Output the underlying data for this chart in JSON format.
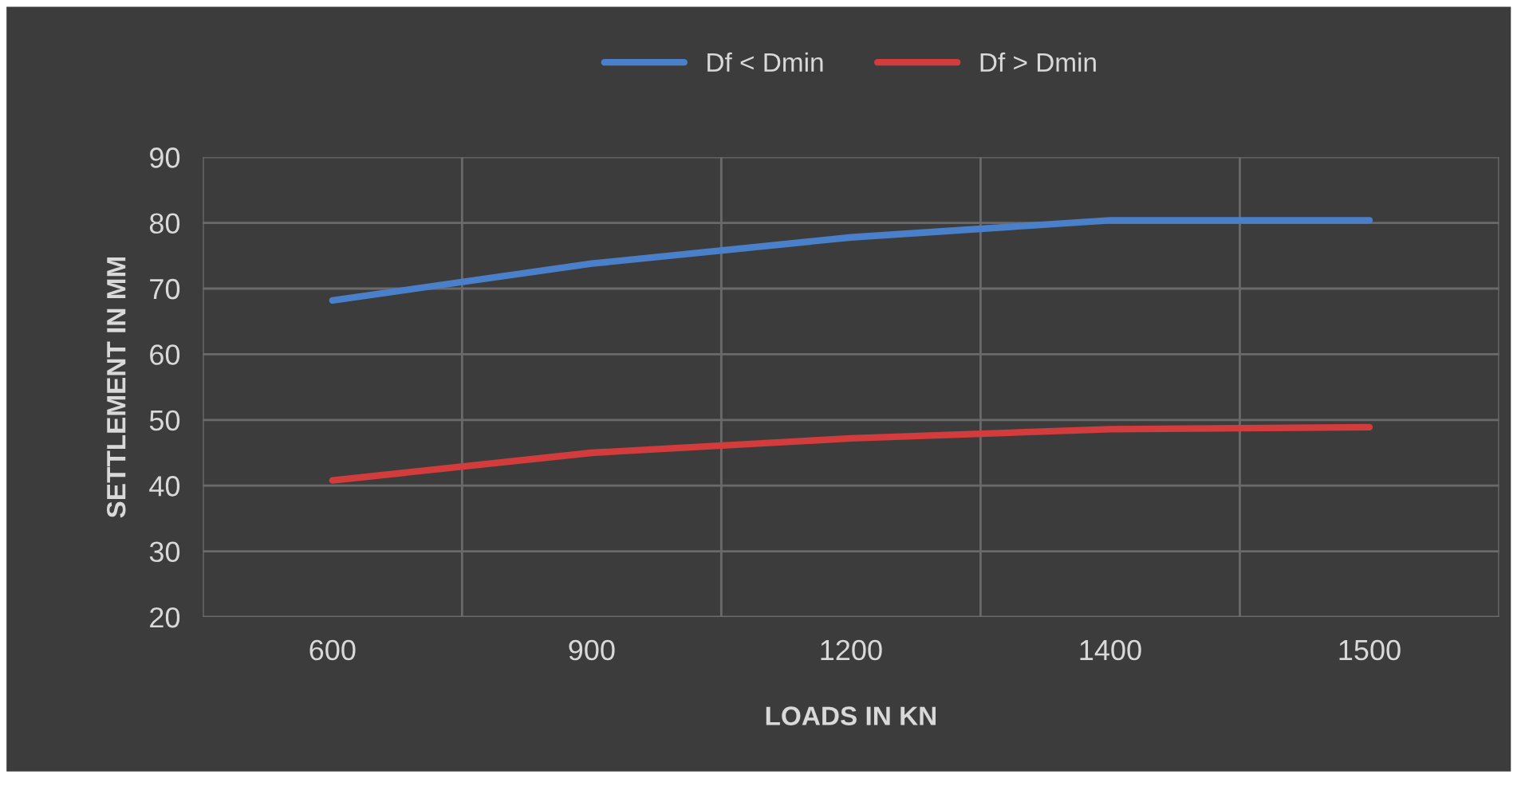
{
  "chart_data": {
    "type": "line",
    "xlabel": "LOADS IN KN",
    "ylabel": "SETTLEMENT IN MM",
    "categories": [
      "600",
      "900",
      "1200",
      "1400",
      "1500"
    ],
    "series": [
      {
        "name": "Df < Dmin",
        "color": "#4a7fc9",
        "values": [
          68.2,
          73.8,
          77.8,
          80.4,
          80.4
        ]
      },
      {
        "name": "Df > Dmin",
        "color": "#d23c3c",
        "values": [
          40.8,
          45,
          47.2,
          48.6,
          48.9
        ]
      }
    ],
    "ylim": [
      20,
      90
    ],
    "yticks": [
      20,
      30,
      40,
      50,
      60,
      70,
      80,
      90
    ],
    "grid": true,
    "legend": "top",
    "marker": "none",
    "line_style": "solid"
  }
}
